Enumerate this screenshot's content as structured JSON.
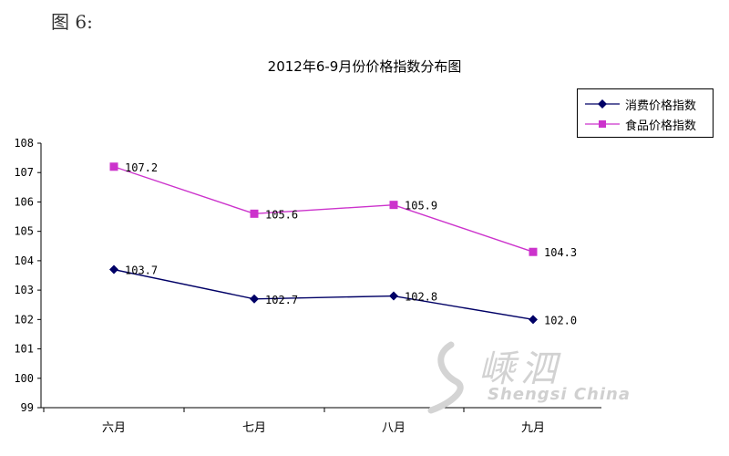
{
  "figure_label": "图 6:",
  "watermark": {
    "text_cn": "嵊泗",
    "text_en": "Shengsi China"
  },
  "chart_data": {
    "type": "line",
    "title": "2012年6-9月份价格指数分布图",
    "xlabel": "",
    "ylabel": "",
    "categories": [
      "六月",
      "七月",
      "八月",
      "九月"
    ],
    "ylim": [
      99,
      108
    ],
    "yticks": [
      99,
      100,
      101,
      102,
      103,
      104,
      105,
      106,
      107,
      108
    ],
    "grid": false,
    "legend_position": "top-right",
    "series": [
      {
        "name": "消费价格指数",
        "values": [
          103.7,
          102.7,
          102.8,
          102.0
        ],
        "labels": [
          "103.7",
          "102.7",
          "102.8",
          "102.0"
        ],
        "color": "#000066",
        "marker": "diamond"
      },
      {
        "name": "食品价格指数",
        "values": [
          107.2,
          105.6,
          105.9,
          104.3
        ],
        "labels": [
          "107.2",
          "105.6",
          "105.9",
          "104.3"
        ],
        "color": "#cc33cc",
        "marker": "square"
      }
    ]
  }
}
